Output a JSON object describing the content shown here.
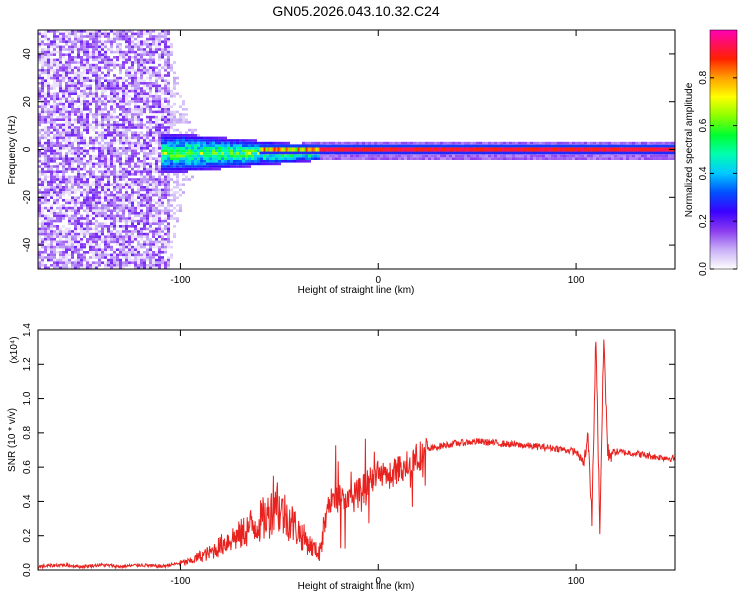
{
  "figure_title": "GN05.2026.043.10.32.C24",
  "chart_data": [
    {
      "type": "heatmap",
      "title": "GN05.2026.043.10.32.C24",
      "xlabel": "Height of straight line (km)",
      "ylabel": "Frequency (Hz)",
      "xlim": [
        -172,
        150
      ],
      "ylim": [
        -50,
        50
      ],
      "x_ticks": [
        -100,
        0,
        100
      ],
      "y_ticks": [
        -40,
        -20,
        0,
        20,
        40
      ],
      "colorbar": {
        "label": "Normalized spectral amplitude",
        "range": [
          0,
          1
        ],
        "ticks": [
          0.0,
          0.2,
          0.4,
          0.6,
          0.8
        ],
        "colors": [
          "#ffffff",
          "#c4a8f5",
          "#8a2be2",
          "#3f00ff",
          "#0000ff",
          "#00aaff",
          "#00ffff",
          "#00ff88",
          "#00ff00",
          "#aaff00",
          "#ffff00",
          "#ffaa00",
          "#ff0000",
          "#ff00aa"
        ]
      },
      "description_regions": [
        {
          "x": [
            -172,
            -105
          ],
          "y": [
            -50,
            50
          ],
          "level": 0.1
        },
        {
          "x": [
            -110,
            -30
          ],
          "y": [
            -12,
            10
          ],
          "level": 0.3
        },
        {
          "x": [
            -30,
            150
          ],
          "y": [
            -1,
            1
          ],
          "level": 0.9
        }
      ]
    },
    {
      "type": "line",
      "xlabel": "Height of straight line (km)",
      "ylabel": "SNR (10 * v/v)",
      "y_multiplier": "(x10⁴)",
      "xlim": [
        -172,
        150
      ],
      "ylim": [
        0,
        1.4
      ],
      "x_ticks": [
        -100,
        0,
        100
      ],
      "y_ticks": [
        0.0,
        0.2,
        0.4,
        0.6,
        0.8,
        1.0,
        1.2,
        1.4
      ],
      "color": "#e8231f",
      "series": [
        {
          "x": [
            -172,
            -160,
            -150,
            -140,
            -130,
            -120,
            -110,
            -100,
            -95,
            -90,
            -85,
            -80,
            -75,
            -70,
            -65,
            -60,
            -55,
            -52,
            -50,
            -45,
            -40,
            -35,
            -30,
            -25,
            -20,
            -15,
            -10,
            -5,
            0,
            5,
            10,
            15,
            20,
            25,
            30,
            40,
            50,
            60,
            70,
            80,
            90,
            100,
            104,
            106,
            108,
            110,
            112,
            114,
            116,
            120,
            130,
            140,
            150
          ],
          "y": [
            0.02,
            0.03,
            0.02,
            0.03,
            0.02,
            0.03,
            0.02,
            0.04,
            0.05,
            0.08,
            0.1,
            0.14,
            0.18,
            0.2,
            0.25,
            0.28,
            0.32,
            0.45,
            0.35,
            0.3,
            0.22,
            0.15,
            0.1,
            0.38,
            0.42,
            0.4,
            0.45,
            0.5,
            0.55,
            0.55,
            0.58,
            0.62,
            0.66,
            0.7,
            0.72,
            0.74,
            0.75,
            0.74,
            0.73,
            0.72,
            0.71,
            0.69,
            0.62,
            0.78,
            0.3,
            1.38,
            0.25,
            1.35,
            0.68,
            0.69,
            0.68,
            0.66,
            0.65
          ]
        }
      ]
    }
  ]
}
